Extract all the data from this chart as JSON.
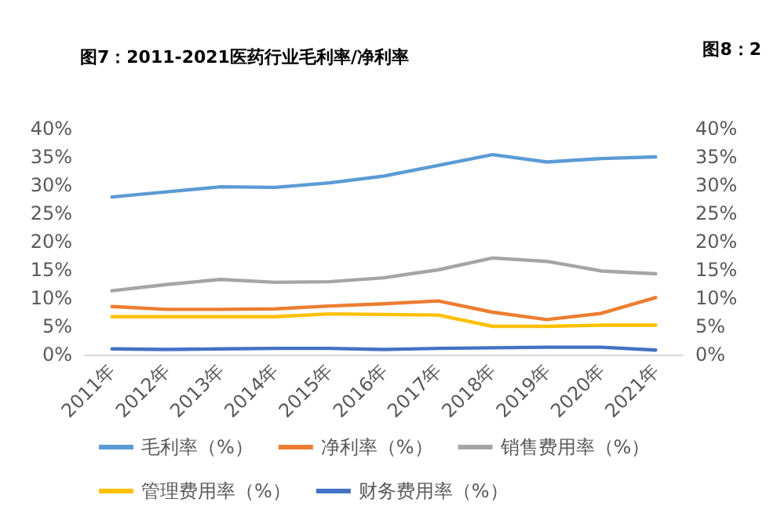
{
  "chart_data": {
    "type": "line",
    "title": "图7：2011-2021医药行业毛利率/净利率",
    "annotations": [
      "图8：2"
    ],
    "categories": [
      "2011年",
      "2012年",
      "2013年",
      "2014年",
      "2015年",
      "2016年",
      "2017年",
      "2018年",
      "2019年",
      "2020年",
      "2021年"
    ],
    "series": [
      {
        "name": "毛利率（%）",
        "color": "#5b9bd5",
        "values": [
          27.9,
          28.8,
          29.7,
          29.6,
          30.4,
          31.6,
          33.5,
          35.4,
          34.1,
          34.7,
          35.0
        ]
      },
      {
        "name": "净利率（%）",
        "color": "#ed7d31",
        "values": [
          8.5,
          8.0,
          8.0,
          8.1,
          8.6,
          9.0,
          9.5,
          7.5,
          6.2,
          7.3,
          10.1
        ]
      },
      {
        "name": "销售费用率（%）",
        "color": "#a5a5a5",
        "values": [
          11.3,
          12.4,
          13.3,
          12.8,
          12.9,
          13.6,
          15.0,
          17.1,
          16.5,
          14.8,
          14.3
        ]
      },
      {
        "name": "管理费用率（%）",
        "color": "#ffc000",
        "values": [
          6.7,
          6.7,
          6.7,
          6.7,
          7.2,
          7.1,
          7.0,
          5.0,
          5.0,
          5.2,
          5.2
        ]
      },
      {
        "name": "财务费用率（%）",
        "color": "#4472c4",
        "values": [
          1.0,
          0.9,
          1.0,
          1.1,
          1.1,
          0.9,
          1.1,
          1.2,
          1.3,
          1.3,
          0.8
        ]
      }
    ],
    "ylim": [
      0,
      40
    ],
    "yticks": [
      {
        "value": 0,
        "label": "0%"
      },
      {
        "value": 5,
        "label": "5%"
      },
      {
        "value": 10,
        "label": "10%"
      },
      {
        "value": 15,
        "label": "15%"
      },
      {
        "value": 20,
        "label": "20%"
      },
      {
        "value": 25,
        "label": "25%"
      },
      {
        "value": 30,
        "label": "30%"
      },
      {
        "value": 35,
        "label": "35%"
      },
      {
        "value": 40,
        "label": "40%"
      }
    ],
    "y2lim": [
      0,
      40
    ],
    "y2ticks": [
      {
        "value": 0,
        "label": "0%"
      },
      {
        "value": 5,
        "label": "5%"
      },
      {
        "value": 10,
        "label": "10%"
      },
      {
        "value": 15,
        "label": "15%"
      },
      {
        "value": 20,
        "label": "20%"
      },
      {
        "value": 25,
        "label": "25%"
      },
      {
        "value": 30,
        "label": "30%"
      },
      {
        "value": 35,
        "label": "35%"
      },
      {
        "value": 40,
        "label": "40%"
      }
    ],
    "grid": false,
    "legend": "bottom",
    "marker": "none",
    "line_style": "solid"
  }
}
